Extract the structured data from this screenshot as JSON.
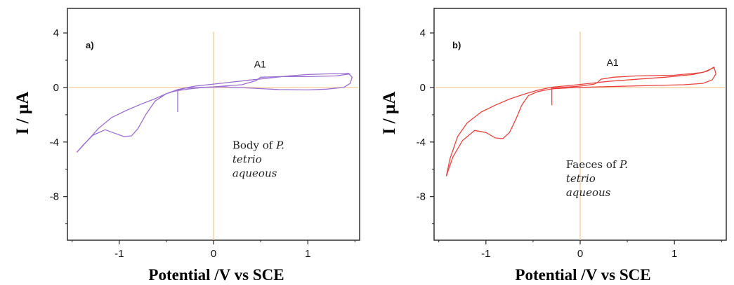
{
  "chart_data": [
    {
      "type": "line",
      "panel_label": "a)",
      "xlabel": "Potential /V vs SCE",
      "ylabel": "I / µA",
      "xlim": [
        -1.55,
        1.55
      ],
      "ylim": [
        -11.2,
        5.8
      ],
      "x_ticks": [
        -1,
        0,
        1
      ],
      "y_ticks": [
        4,
        0,
        -4,
        -8
      ],
      "peak_label": {
        "text": "A1",
        "x": 0.43,
        "y": 1.45
      },
      "annotation": {
        "line1_prefix": "Body of ",
        "line1_italic": "P.",
        "line2": "tetrio",
        "line3": "aqueous",
        "x": 0.2,
        "y": -4.5
      },
      "crosshair": {
        "x": 0,
        "y": 0,
        "color": "#f3c78f"
      },
      "trace_color": "#9b6fd1",
      "series": [
        {
          "values": [
            [
              -1.45,
              -4.75
            ],
            [
              -1.35,
              -4.0
            ],
            [
              -1.22,
              -3.0
            ],
            [
              -1.08,
              -2.2
            ],
            [
              -0.93,
              -1.7
            ],
            [
              -0.78,
              -1.25
            ],
            [
              -0.63,
              -0.85
            ],
            [
              -0.5,
              -0.45
            ],
            [
              -0.38,
              -0.15
            ],
            [
              -0.2,
              0.1
            ],
            [
              0,
              0.25
            ],
            [
              0.2,
              0.4
            ],
            [
              0.4,
              0.55
            ],
            [
              0.6,
              0.7
            ],
            [
              0.8,
              0.85
            ],
            [
              1.0,
              0.95
            ],
            [
              1.2,
              1.0
            ],
            [
              1.35,
              1.02
            ],
            [
              1.43,
              1.05
            ]
          ]
        },
        {
          "values": [
            [
              1.43,
              1.05
            ],
            [
              1.47,
              0.75
            ],
            [
              1.45,
              0.3
            ],
            [
              1.38,
              0.0
            ],
            [
              1.2,
              -0.12
            ],
            [
              1.0,
              -0.18
            ],
            [
              0.7,
              -0.15
            ],
            [
              0.4,
              -0.05
            ],
            [
              0.1,
              0.05
            ],
            [
              -0.1,
              0.0
            ],
            [
              -0.25,
              -0.1
            ],
            [
              -0.4,
              -0.25
            ],
            [
              -0.5,
              -0.45
            ],
            [
              -0.62,
              -1.0
            ],
            [
              -0.72,
              -2.0
            ],
            [
              -0.8,
              -3.0
            ],
            [
              -0.87,
              -3.55
            ],
            [
              -0.95,
              -3.6
            ],
            [
              -1.05,
              -3.35
            ],
            [
              -1.15,
              -3.1
            ],
            [
              -1.28,
              -3.5
            ],
            [
              -1.38,
              -4.2
            ],
            [
              -1.45,
              -4.75
            ]
          ]
        },
        {
          "values": [
            [
              -0.38,
              -1.8
            ],
            [
              -0.38,
              -0.2
            ],
            [
              -0.3,
              -0.05
            ],
            [
              0,
              0.05
            ],
            [
              0.3,
              0.2
            ],
            [
              0.45,
              0.5
            ],
            [
              0.5,
              0.75
            ],
            [
              0.7,
              0.8
            ],
            [
              1.0,
              0.8
            ],
            [
              1.3,
              0.85
            ],
            [
              1.45,
              1.0
            ]
          ]
        }
      ]
    },
    {
      "type": "line",
      "panel_label": "b)",
      "xlabel": "Potential /V vs SCE",
      "ylabel": "I / µA",
      "xlim": [
        -1.55,
        1.55
      ],
      "ylim": [
        -11.2,
        5.8
      ],
      "x_ticks": [
        -1,
        0,
        1
      ],
      "y_ticks": [
        4,
        0,
        -4,
        -8
      ],
      "peak_label": {
        "text": "A1",
        "x": 0.28,
        "y": 1.6
      },
      "annotation": {
        "line1_prefix": "Faeces of ",
        "line1_italic": "P.",
        "line2": "tetrio",
        "line3": "aqueous",
        "x": -0.15,
        "y": -5.9
      },
      "crosshair": {
        "x": 0,
        "y": 0,
        "color": "#f3c78f"
      },
      "trace_color": "#e8433f",
      "series": [
        {
          "values": [
            [
              -1.42,
              -6.5
            ],
            [
              -1.38,
              -5.2
            ],
            [
              -1.3,
              -3.6
            ],
            [
              -1.2,
              -2.6
            ],
            [
              -1.05,
              -1.8
            ],
            [
              -0.9,
              -1.3
            ],
            [
              -0.75,
              -0.85
            ],
            [
              -0.6,
              -0.5
            ],
            [
              -0.45,
              -0.2
            ],
            [
              -0.3,
              0.02
            ],
            [
              -0.1,
              0.15
            ],
            [
              0.1,
              0.3
            ],
            [
              0.3,
              0.45
            ],
            [
              0.6,
              0.6
            ],
            [
              0.9,
              0.75
            ],
            [
              1.2,
              0.95
            ],
            [
              1.35,
              1.2
            ],
            [
              1.42,
              1.5
            ]
          ]
        },
        {
          "values": [
            [
              1.42,
              1.5
            ],
            [
              1.44,
              1.0
            ],
            [
              1.4,
              0.55
            ],
            [
              1.3,
              0.3
            ],
            [
              1.1,
              0.2
            ],
            [
              0.8,
              0.15
            ],
            [
              0.5,
              0.1
            ],
            [
              0.2,
              0.05
            ],
            [
              -0.1,
              -0.02
            ],
            [
              -0.3,
              -0.1
            ],
            [
              -0.45,
              -0.3
            ],
            [
              -0.55,
              -0.6
            ],
            [
              -0.62,
              -1.3
            ],
            [
              -0.68,
              -2.3
            ],
            [
              -0.75,
              -3.3
            ],
            [
              -0.82,
              -3.75
            ],
            [
              -0.9,
              -3.7
            ],
            [
              -1.0,
              -3.3
            ],
            [
              -1.12,
              -3.15
            ],
            [
              -1.25,
              -3.9
            ],
            [
              -1.35,
              -5.1
            ],
            [
              -1.42,
              -6.5
            ]
          ]
        },
        {
          "values": [
            [
              -0.3,
              -1.3
            ],
            [
              -0.3,
              -0.05
            ],
            [
              0,
              0.1
            ],
            [
              0.15,
              0.25
            ],
            [
              0.18,
              0.35
            ],
            [
              0.22,
              0.6
            ],
            [
              0.35,
              0.75
            ],
            [
              0.6,
              0.85
            ],
            [
              1.0,
              0.9
            ],
            [
              1.3,
              1.1
            ],
            [
              1.42,
              1.45
            ]
          ]
        }
      ]
    }
  ]
}
